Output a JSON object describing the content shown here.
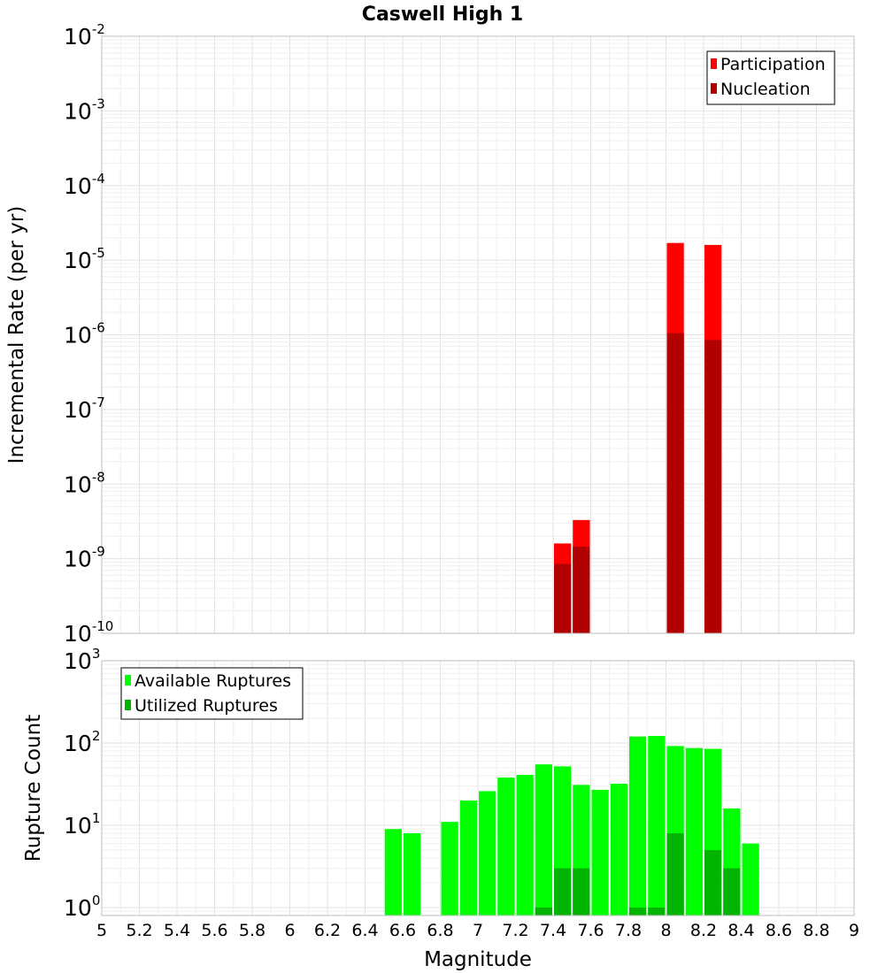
{
  "title": "Caswell High 1",
  "chart_data": [
    {
      "type": "bar",
      "ylabel": "Incremental Rate (per yr)",
      "xlabel": "",
      "xlim": [
        5,
        9
      ],
      "ylim": [
        1e-10,
        0.01
      ],
      "yscale": "log",
      "ytick_exponents": [
        -2,
        -3,
        -4,
        -5,
        -6,
        -7,
        -8,
        -9,
        -10
      ],
      "ytick_base": "10",
      "bin_width": 0.1,
      "grid": true,
      "legend_position": "top-right",
      "series": [
        {
          "name": "Participation",
          "color": "#ff0000",
          "x": [
            7.45,
            7.55,
            8.05,
            8.25
          ],
          "values": [
            1.6e-09,
            3.3e-09,
            1.7e-05,
            1.6e-05
          ]
        },
        {
          "name": "Nucleation",
          "color": "#b00000",
          "x": [
            7.45,
            7.55,
            8.05,
            8.25
          ],
          "values": [
            8.5e-10,
            1.45e-09,
            1.05e-06,
            8.5e-07
          ]
        }
      ]
    },
    {
      "type": "bar",
      "ylabel": "Rupture Count",
      "xlabel": "Magnitude",
      "xlim": [
        5,
        9
      ],
      "ylim": [
        0.8,
        1000
      ],
      "yscale": "log",
      "ytick_exponents": [
        3,
        2,
        1,
        0
      ],
      "ytick_base": "10",
      "bin_width": 0.1,
      "grid": true,
      "legend_position": "top-left",
      "xticks": [
        "5",
        "5.2",
        "5.4",
        "5.6",
        "5.8",
        "6",
        "6.2",
        "6.4",
        "6.6",
        "6.8",
        "7",
        "7.2",
        "7.4",
        "7.6",
        "7.8",
        "8",
        "8.2",
        "8.4",
        "8.6",
        "8.8",
        "9"
      ],
      "series": [
        {
          "name": "Available Ruptures",
          "color": "#00ff00",
          "x": [
            6.55,
            6.65,
            6.85,
            6.95,
            7.05,
            7.15,
            7.25,
            7.35,
            7.45,
            7.55,
            7.65,
            7.75,
            7.85,
            7.95,
            8.05,
            8.15,
            8.25,
            8.35,
            8.45
          ],
          "values": [
            9,
            8,
            11,
            20,
            26,
            38,
            41,
            55,
            52,
            31,
            27,
            32,
            120,
            122,
            92,
            87,
            85,
            16,
            6
          ]
        },
        {
          "name": "Utilized Ruptures",
          "color": "#00b400",
          "x": [
            7.35,
            7.45,
            7.55,
            7.85,
            7.95,
            8.05,
            8.25,
            8.35
          ],
          "values": [
            1,
            3,
            3,
            1,
            1,
            8,
            5,
            3
          ]
        }
      ]
    }
  ]
}
